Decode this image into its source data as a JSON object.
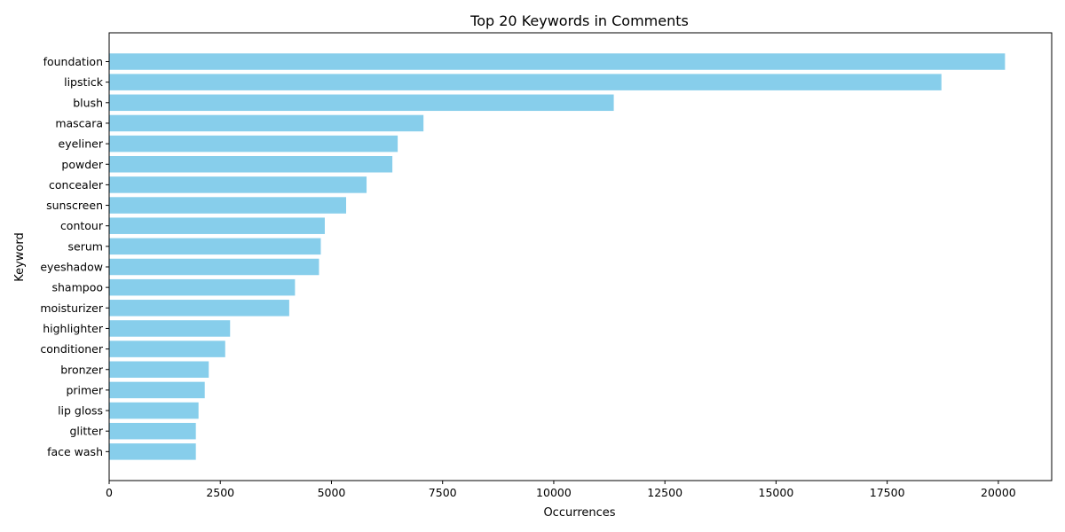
{
  "chart_data": {
    "type": "bar",
    "orientation": "horizontal",
    "title": "Top 20 Keywords in Comments",
    "xlabel": "Occurrences",
    "ylabel": "Keyword",
    "bar_color": "#87ceeb",
    "xlim": [
      0,
      21200
    ],
    "xticks": [
      0,
      2500,
      5000,
      7500,
      10000,
      12500,
      15000,
      17500,
      20000
    ],
    "grid": false,
    "categories": [
      "foundation",
      "lipstick",
      "blush",
      "mascara",
      "eyeliner",
      "powder",
      "concealer",
      "sunscreen",
      "contour",
      "serum",
      "eyeshadow",
      "shampoo",
      "moisturizer",
      "highlighter",
      "conditioner",
      "bronzer",
      "primer",
      "lip gloss",
      "glitter",
      "face wash"
    ],
    "values": [
      20150,
      18720,
      11350,
      7070,
      6490,
      6370,
      5790,
      5330,
      4850,
      4760,
      4720,
      4180,
      4050,
      2720,
      2610,
      2240,
      2150,
      2010,
      1950,
      1950
    ]
  }
}
